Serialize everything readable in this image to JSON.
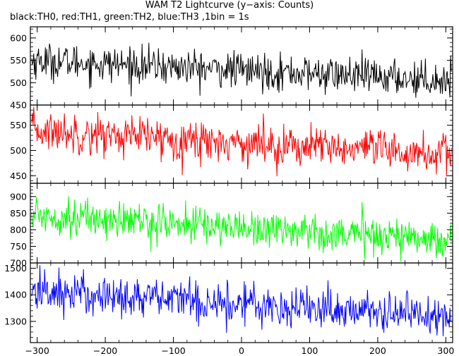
{
  "title": "WAM T2 Lightcurve (y−axis: Counts)",
  "subtitle": "black:TH0, red:TH1, green:TH2, blue:TH3 ,1bin = 1s",
  "chart_data": {
    "type": "line",
    "title": "WAM T2 Lightcurve (y−axis: Counts)",
    "xlim": [
      -310,
      310
    ],
    "x_ticks": [
      -300,
      -200,
      -100,
      0,
      100,
      200,
      300
    ],
    "x_tick_labels": [
      "−300",
      "−200",
      "−100",
      "0",
      "100",
      "200",
      "300"
    ],
    "series": [
      {
        "name": "TH0",
        "color": "#000000",
        "ylim": [
          450,
          625
        ],
        "y_ticks": [
          450,
          500,
          550,
          600
        ],
        "y_tick_labels": [
          "450",
          "500",
          "550",
          "600"
        ],
        "trend_start": 550,
        "trend_end": 505,
        "noise": 20
      },
      {
        "name": "TH1",
        "color": "#ff0000",
        "ylim": [
          435,
          590
        ],
        "y_ticks": [
          450,
          500,
          550
        ],
        "y_tick_labels": [
          "450",
          "500",
          "550"
        ],
        "trend_start": 540,
        "trend_end": 490,
        "noise": 20
      },
      {
        "name": "TH2",
        "color": "#00ff00",
        "ylim": [
          700,
          940
        ],
        "y_ticks": [
          700,
          750,
          800,
          850,
          900
        ],
        "y_tick_labels": [
          "700",
          "750",
          "800",
          "850",
          "900"
        ],
        "trend_start": 845,
        "trend_end": 770,
        "noise": 28
      },
      {
        "name": "TH3",
        "color": "#0000ff",
        "ylim": [
          1220,
          1520
        ],
        "y_ticks": [
          1300,
          1400,
          1500
        ],
        "y_tick_labels": [
          "1300",
          "1400",
          "1500"
        ],
        "trend_start": 1415,
        "trend_end": 1320,
        "noise": 40
      }
    ]
  }
}
